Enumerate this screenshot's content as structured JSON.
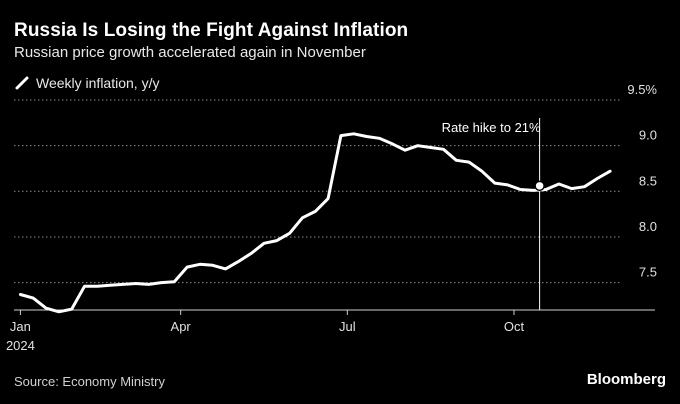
{
  "header": {
    "title": "Russia Is Losing the Fight Against Inflation",
    "subtitle": "Russian price growth accelerated again in November"
  },
  "legend": {
    "label": "Weekly inflation, y/y"
  },
  "footer": {
    "source": "Source: Economy Ministry",
    "brand": "Bloomberg"
  },
  "colors": {
    "background": "#000000",
    "line": "#ffffff",
    "grid": "#8a8a8a"
  },
  "chart_data": {
    "type": "line",
    "title": "Russia Is Losing the Fight Against Inflation",
    "subtitle": "Russian price growth accelerated again in November",
    "xlabel": "",
    "ylabel": "",
    "ylim": [
      7.2,
      9.5
    ],
    "xlim": [
      -0.5,
      49.5
    ],
    "grid": true,
    "legend_position": "top-left",
    "y_ticks": [
      {
        "value": 9.5,
        "label": "9.5%"
      },
      {
        "value": 9.0,
        "label": "9.0"
      },
      {
        "value": 8.5,
        "label": "8.5"
      },
      {
        "value": 8.0,
        "label": "8.0"
      },
      {
        "value": 7.5,
        "label": "7.5"
      }
    ],
    "x_ticks": [
      {
        "value": 0,
        "label": "Jan",
        "sublabel": "2024"
      },
      {
        "value": 12.5,
        "label": "Apr",
        "sublabel": ""
      },
      {
        "value": 25.5,
        "label": "Jul",
        "sublabel": ""
      },
      {
        "value": 38.5,
        "label": "Oct",
        "sublabel": ""
      }
    ],
    "series": [
      {
        "name": "Weekly inflation, y/y",
        "x": [
          0,
          1,
          2,
          3,
          4,
          5,
          6,
          7,
          8,
          9,
          10,
          11,
          12,
          13,
          14,
          15,
          16,
          17,
          18,
          19,
          20,
          21,
          22,
          23,
          24,
          25,
          26,
          27,
          28,
          29,
          30,
          31,
          32,
          33,
          34,
          35,
          36,
          37,
          38,
          39,
          40,
          41,
          42,
          43,
          44,
          45,
          46
        ],
        "values": [
          7.37,
          7.33,
          7.22,
          7.18,
          7.21,
          7.46,
          7.46,
          7.47,
          7.48,
          7.49,
          7.48,
          7.5,
          7.51,
          7.67,
          7.7,
          7.69,
          7.65,
          7.73,
          7.82,
          7.93,
          7.96,
          8.04,
          8.21,
          8.28,
          8.42,
          9.11,
          9.13,
          9.1,
          9.08,
          9.02,
          8.95,
          9.0,
          8.98,
          8.96,
          8.84,
          8.82,
          8.72,
          8.59,
          8.57,
          8.52,
          8.51,
          8.52,
          8.58,
          8.53,
          8.55,
          8.64,
          8.72
        ]
      }
    ],
    "annotations": [
      {
        "x": 40.5,
        "y": 8.56,
        "text": "Rate hike to 21%"
      }
    ]
  }
}
